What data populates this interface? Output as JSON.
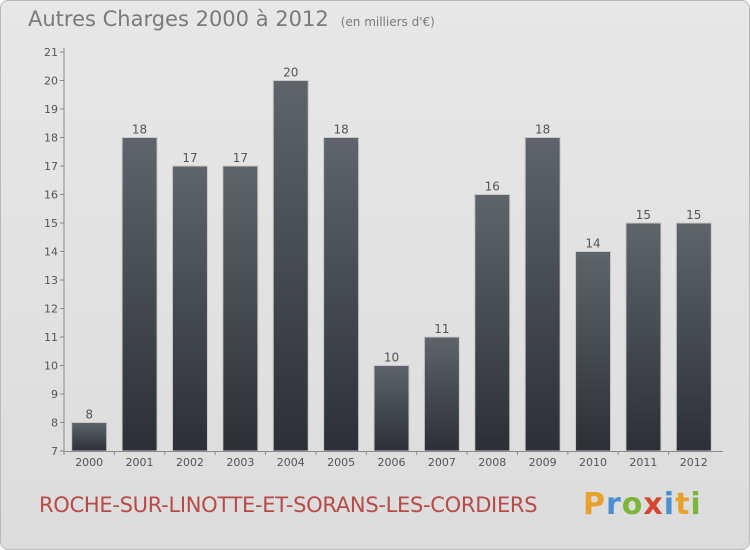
{
  "title": "Autres Charges 2000 à 2012",
  "unit": "(en milliers d'€)",
  "commune": "ROCHE-SUR-LINOTTE-ET-SORANS-LES-CORDIERS",
  "brand": "Proxiti",
  "colors": {
    "bar_top": "#5f646b",
    "bar_bottom": "#2c3036",
    "text": "#555555",
    "commune": "#b84a47",
    "brand_letters": [
      "#e8a12c",
      "#4b8fd0",
      "#7bb63b",
      "#d6452e",
      "#4b8fd0",
      "#e8a12c",
      "#7bb63b"
    ]
  },
  "chart_data": {
    "type": "bar",
    "categories": [
      "2000",
      "2001",
      "2002",
      "2003",
      "2004",
      "2005",
      "2006",
      "2007",
      "2008",
      "2009",
      "2010",
      "2011",
      "2012"
    ],
    "values": [
      8,
      18,
      17,
      17,
      20,
      18,
      10,
      11,
      16,
      18,
      14,
      15,
      15
    ],
    "ylim": [
      7,
      21
    ],
    "yticks": [
      7,
      8,
      9,
      10,
      11,
      12,
      13,
      14,
      15,
      16,
      17,
      18,
      19,
      20,
      21
    ],
    "grid": false,
    "legend": "none"
  }
}
